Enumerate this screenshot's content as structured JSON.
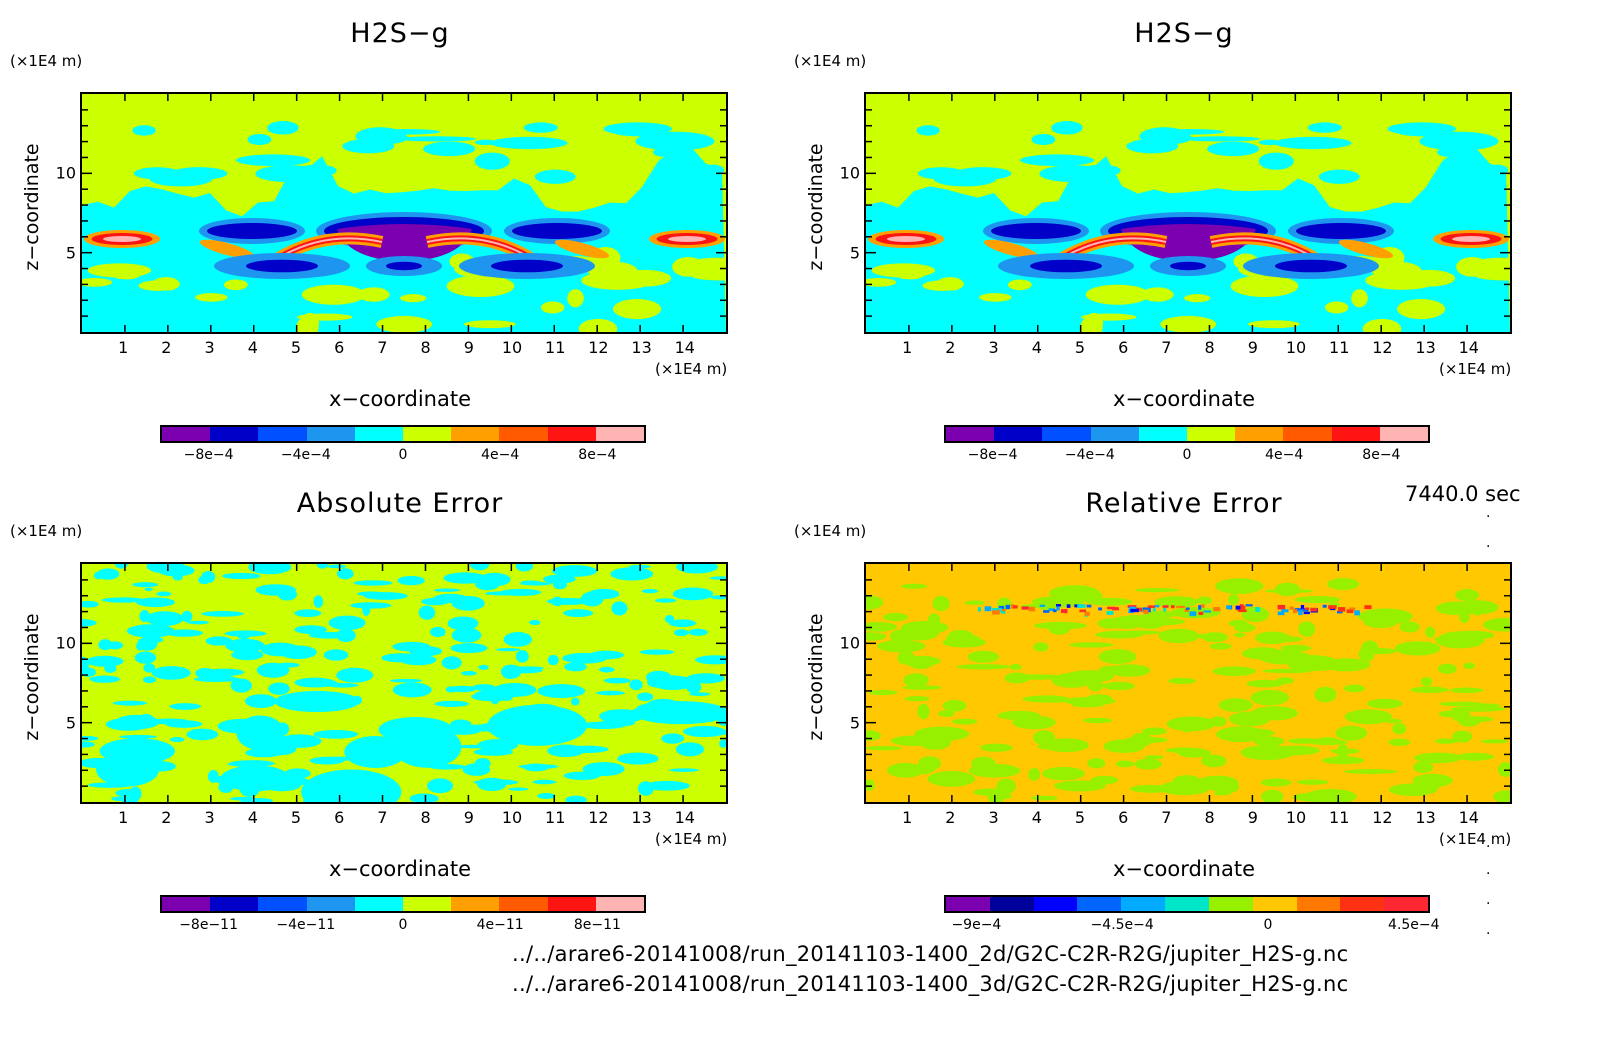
{
  "time_label": "7440.0 sec",
  "file_paths": [
    "../../arare6-20141008/run_20141103-1400_2d/G2C-C2R-R2G/jupiter_H2S-g.nc",
    "../../arare6-20141008/run_20141103-1400_3d/G2C-C2R-R2G/jupiter_H2S-g.nc"
  ],
  "axis_text": {
    "x_unit": "(×1E4 m)",
    "y_unit": "(×1E4 m)",
    "xlabel": "x−coordinate",
    "ylabel": "z−coordinate",
    "x_ticks": [
      "1",
      "2",
      "3",
      "4",
      "5",
      "6",
      "7",
      "8",
      "9",
      "10",
      "11",
      "12",
      "13",
      "14"
    ],
    "y_ticks": [
      "10",
      "5"
    ]
  },
  "palettes": {
    "main": [
      "#7a00b0",
      "#0000c8",
      "#0050ff",
      "#1e96f0",
      "#00ffff",
      "#ccff00",
      "#ffa000",
      "#ff5a00",
      "#ff1414",
      "#ffb4b4"
    ],
    "relerr": [
      "#7a00b0",
      "#00009a",
      "#0000ff",
      "#0064ff",
      "#00aaff",
      "#00e6c8",
      "#96f000",
      "#ffc800",
      "#ff7800",
      "#ff3214",
      "#ff2832"
    ]
  },
  "panels": [
    {
      "title": "H2S−g",
      "cbar_palette": "main",
      "cbar_labels": [
        "−8e−4",
        "−4e−4",
        "0",
        "4e−4",
        "8e−4"
      ],
      "field_type": "h2s"
    },
    {
      "title": "H2S−g",
      "cbar_palette": "main",
      "cbar_labels": [
        "−8e−4",
        "−4e−4",
        "0",
        "4e−4",
        "8e−4"
      ],
      "field_type": "h2s"
    },
    {
      "title": "Absolute Error",
      "cbar_palette": "main",
      "cbar_labels": [
        "−8e−11",
        "−4e−11",
        "0",
        "4e−11",
        "8e−11"
      ],
      "field_type": "abserr"
    },
    {
      "title": "Relative Error",
      "cbar_palette": "relerr",
      "cbar_labels": [
        "−9e−4",
        "−4.5e−4",
        "0",
        "4.5e−4"
      ],
      "field_type": "relerr"
    }
  ],
  "chart_data": [
    {
      "type": "heatmap",
      "title": "H2S−g",
      "xlabel": "x−coordinate",
      "ylabel": "z−coordinate",
      "xlim": [
        0,
        15
      ],
      "ylim": [
        0,
        15
      ],
      "colorbar": {
        "min": -0.001,
        "max": 0.001,
        "ticks": [
          -0.0008,
          -0.0004,
          0,
          0.0004,
          0.0008
        ]
      }
    },
    {
      "type": "heatmap",
      "title": "H2S−g",
      "xlabel": "x−coordinate",
      "ylabel": "z−coordinate",
      "xlim": [
        0,
        15
      ],
      "ylim": [
        0,
        15
      ],
      "colorbar": {
        "min": -0.001,
        "max": 0.001,
        "ticks": [
          -0.0008,
          -0.0004,
          0,
          0.0004,
          0.0008
        ]
      }
    },
    {
      "type": "heatmap",
      "title": "Absolute Error",
      "xlabel": "x−coordinate",
      "ylabel": "z−coordinate",
      "xlim": [
        0,
        15
      ],
      "ylim": [
        0,
        15
      ],
      "colorbar": {
        "min": -1e-10,
        "max": 1e-10,
        "ticks": [
          -8e-11,
          -4e-11,
          0,
          4e-11,
          8e-11
        ]
      }
    },
    {
      "type": "heatmap",
      "title": "Relative Error",
      "xlabel": "x−coordinate",
      "ylabel": "z−coordinate",
      "xlim": [
        0,
        15
      ],
      "ylim": [
        0,
        15
      ],
      "colorbar": {
        "min": -0.001,
        "max": 0.0005,
        "ticks": [
          -0.0009,
          -0.00045,
          0,
          0.00045
        ]
      }
    }
  ]
}
